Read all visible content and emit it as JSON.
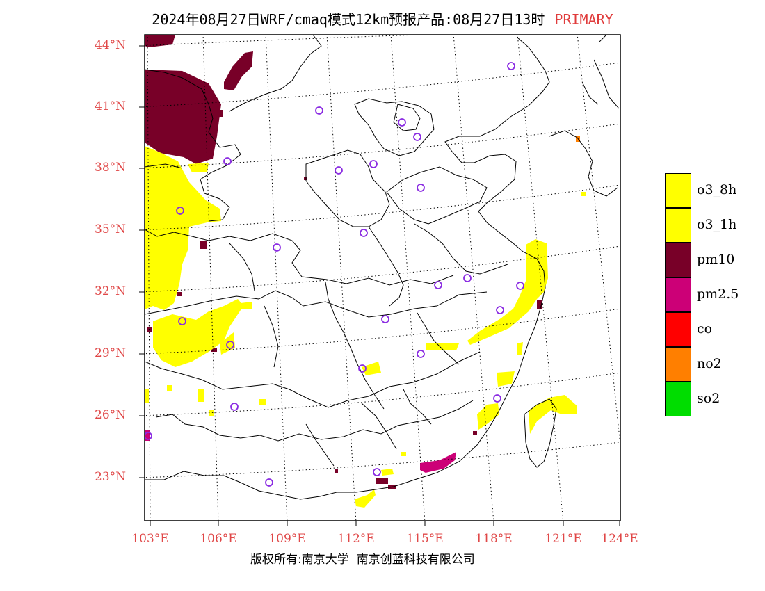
{
  "header": {
    "title": "2024年08月27日WRF/cmaq模式12km预报产品:08月27日13时",
    "status": "PRIMARY"
  },
  "map": {
    "lat_labels": [
      "44°N",
      "41°N",
      "38°N",
      "35°N",
      "32°N",
      "29°N",
      "26°N",
      "23°N"
    ],
    "lon_labels": [
      "103°E",
      "106°E",
      "109°E",
      "112°E",
      "115°E",
      "118°E",
      "121°E",
      "124°E"
    ],
    "colors": {
      "o3_8h": "#ffff00",
      "o3_1h": "#ffff00",
      "pm10": "#780028",
      "pm2.5": "#cc0077",
      "co": "#ff0000",
      "no2": "#ff7f00",
      "so2": "#00dd00",
      "station": "#8a2be2",
      "border": "#000000"
    }
  },
  "legend": {
    "items": [
      {
        "label": "o3_8h",
        "color": "#ffff00"
      },
      {
        "label": "o3_1h",
        "color": "#ffff00"
      },
      {
        "label": "pm10",
        "color": "#780028"
      },
      {
        "label": "pm2.5",
        "color": "#cc0077"
      },
      {
        "label": "co",
        "color": "#ff0000"
      },
      {
        "label": "no2",
        "color": "#ff7f00"
      },
      {
        "label": "so2",
        "color": "#00dd00"
      }
    ]
  },
  "footer": {
    "copyright": "版权所有:南京大学",
    "company": "南京创蓝科技有限公司"
  }
}
